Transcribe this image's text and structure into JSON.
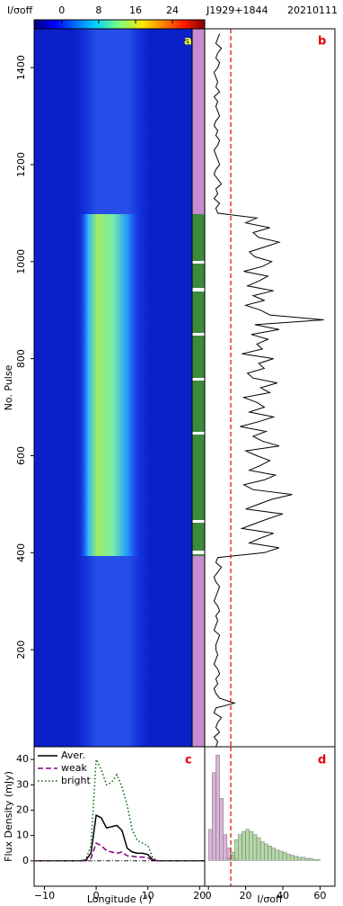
{
  "chart_data": [
    {
      "type": "heatmap",
      "ylabel": "No. Pulse",
      "ylim": [
        0,
        1480
      ],
      "yticks": [
        200,
        400,
        600,
        800,
        1000,
        1200,
        1400
      ],
      "panel": "a",
      "colorbar": {
        "label": "I/σoff",
        "lim": [
          -6,
          31
        ],
        "ticks": [
          0,
          8,
          16,
          24
        ]
      },
      "title": "J1929+1844",
      "subtitle": "20210111"
    },
    {
      "type": "line",
      "panel": "b",
      "xlim": [
        -2,
        68
      ],
      "ylim": [
        0,
        1480
      ],
      "threshold": 12,
      "color": "#000000",
      "x": [
        0,
        10,
        20,
        30,
        40,
        50,
        60,
        70,
        80,
        90,
        100,
        110,
        120,
        130,
        140,
        150,
        160,
        170,
        180,
        190,
        200,
        210,
        220,
        230,
        240,
        250,
        260,
        270,
        280,
        290,
        300,
        310,
        320,
        330,
        340,
        350,
        360,
        370,
        380,
        390,
        400,
        410,
        420,
        430,
        440,
        450,
        460,
        470,
        480,
        490,
        500,
        510,
        520,
        530,
        540,
        550,
        560,
        570,
        580,
        590,
        600,
        610,
        620,
        630,
        640,
        650,
        660,
        670,
        680,
        690,
        700,
        710,
        720,
        730,
        740,
        750,
        760,
        770,
        780,
        790,
        800,
        810,
        820,
        830,
        840,
        850,
        860,
        870,
        880,
        890,
        900,
        910,
        920,
        930,
        940,
        950,
        960,
        970,
        980,
        990,
        1000,
        1010,
        1020,
        1030,
        1040,
        1050,
        1060,
        1070,
        1080,
        1090,
        1100,
        1110,
        1120,
        1130,
        1140,
        1150,
        1160,
        1170,
        1180,
        1190,
        1200,
        1210,
        1220,
        1230,
        1240,
        1250,
        1260,
        1270,
        1280,
        1290,
        1300,
        1310,
        1320,
        1330,
        1340,
        1350,
        1360,
        1370,
        1380,
        1390,
        1400,
        1410,
        1420,
        1430,
        1440,
        1450,
        1460,
        1470
      ],
      "values": [
        4,
        5,
        3,
        6,
        4,
        5,
        7,
        3,
        4,
        14,
        6,
        4,
        3,
        5,
        4,
        6,
        5,
        3,
        4,
        5,
        4,
        4,
        5,
        6,
        3,
        4,
        5,
        4,
        6,
        5,
        3,
        4,
        5,
        6,
        4,
        3,
        5,
        7,
        4,
        5,
        30,
        38,
        22,
        28,
        35,
        18,
        25,
        32,
        40,
        20,
        27,
        34,
        45,
        24,
        19,
        30,
        36,
        22,
        28,
        33,
        26,
        20,
        38,
        29,
        24,
        31,
        17,
        27,
        35,
        22,
        30,
        26,
        19,
        33,
        28,
        37,
        24,
        21,
        30,
        27,
        35,
        18,
        29,
        26,
        32,
        23,
        38,
        25,
        62,
        33,
        28,
        20,
        30,
        24,
        35,
        21,
        27,
        32,
        19,
        29,
        34,
        25,
        22,
        30,
        38,
        27,
        24,
        33,
        20,
        26,
        5,
        4,
        6,
        3,
        5,
        4,
        7,
        5,
        3,
        4,
        6,
        5,
        4,
        3,
        5,
        6,
        4,
        5,
        3,
        4,
        6,
        5,
        4,
        5,
        3,
        6,
        4,
        5,
        4,
        3,
        5,
        6,
        4,
        5,
        7,
        4,
        5,
        6
      ]
    },
    {
      "type": "line",
      "panel": "c",
      "xlabel": "Longitude (°)",
      "ylabel": "Flux Density (mJy)",
      "xlim": [
        -12,
        21
      ],
      "ylim": [
        -10,
        45
      ],
      "xticks": [
        {
          "value": -10,
          "label": "−10"
        },
        0,
        10,
        20
      ],
      "yticks": [
        0,
        10,
        20,
        30,
        40
      ],
      "legend": "upper left",
      "x": [
        -12,
        -11,
        -10,
        -9,
        -8,
        -7,
        -6,
        -5,
        -4,
        -3,
        -2,
        -1,
        0,
        1,
        2,
        3,
        4,
        5,
        6,
        7,
        8,
        9,
        10,
        11,
        12,
        13,
        14,
        15,
        16,
        17,
        18,
        19,
        20,
        21
      ],
      "series": [
        {
          "name": "Aver.",
          "color": "#000000",
          "dash": "solid",
          "values": [
            0,
            0,
            0,
            0,
            0,
            0,
            0,
            0,
            0,
            0,
            0.3,
            3,
            18,
            17,
            13,
            13.5,
            14,
            12,
            5,
            3.5,
            3,
            3,
            2.5,
            0.3,
            0,
            0,
            0,
            0,
            0,
            0,
            0,
            0,
            0,
            0
          ]
        },
        {
          "name": "weak",
          "color": "#800080",
          "dash": "dashed",
          "values": [
            0,
            0,
            0,
            0,
            0,
            0,
            0,
            0,
            0,
            0,
            0,
            1,
            7,
            6,
            4,
            3.5,
            3,
            3.5,
            2,
            1.8,
            1.5,
            1.5,
            1.2,
            0.2,
            0,
            0,
            0,
            0,
            0,
            0,
            0,
            0,
            0,
            0
          ]
        },
        {
          "name": "bright",
          "color": "#006400",
          "dash": "dotted",
          "values": [
            0,
            0,
            0,
            0,
            0,
            0,
            0,
            0,
            0,
            0,
            0.5,
            6,
            40,
            36,
            30,
            31,
            34,
            29,
            22,
            12,
            8,
            7,
            6,
            1,
            0,
            0,
            0,
            0,
            0,
            0,
            0,
            0,
            0,
            0
          ]
        }
      ]
    },
    {
      "type": "histogram",
      "panel": "d",
      "xlabel": "I/σoff",
      "xlim": [
        -2,
        68
      ],
      "ylim": [
        -25,
        110
      ],
      "threshold": 12,
      "xticks": [
        0,
        20,
        40,
        60
      ],
      "bins": [
        0,
        2,
        4,
        6,
        8,
        10,
        12,
        14,
        16,
        18,
        20,
        22,
        24,
        26,
        28,
        30,
        32,
        34,
        36,
        38,
        40,
        42,
        44,
        46,
        48,
        50,
        52,
        54,
        56,
        58,
        60
      ],
      "series": [
        {
          "color": "#cc99cc",
          "values": [
            30,
            85,
            102,
            60,
            25,
            12,
            5,
            2,
            0,
            0,
            0,
            0,
            0,
            0,
            0,
            0,
            0,
            0,
            0,
            0,
            0,
            0,
            0,
            0,
            0,
            0,
            0,
            0,
            0,
            0
          ]
        },
        {
          "color": "#99cc88",
          "values": [
            0,
            0,
            0,
            0,
            0,
            2,
            8,
            20,
            25,
            28,
            30,
            28,
            25,
            22,
            18,
            16,
            14,
            12,
            10,
            9,
            8,
            6,
            5,
            4,
            3,
            3,
            2,
            2,
            1,
            1
          ]
        }
      ]
    }
  ]
}
